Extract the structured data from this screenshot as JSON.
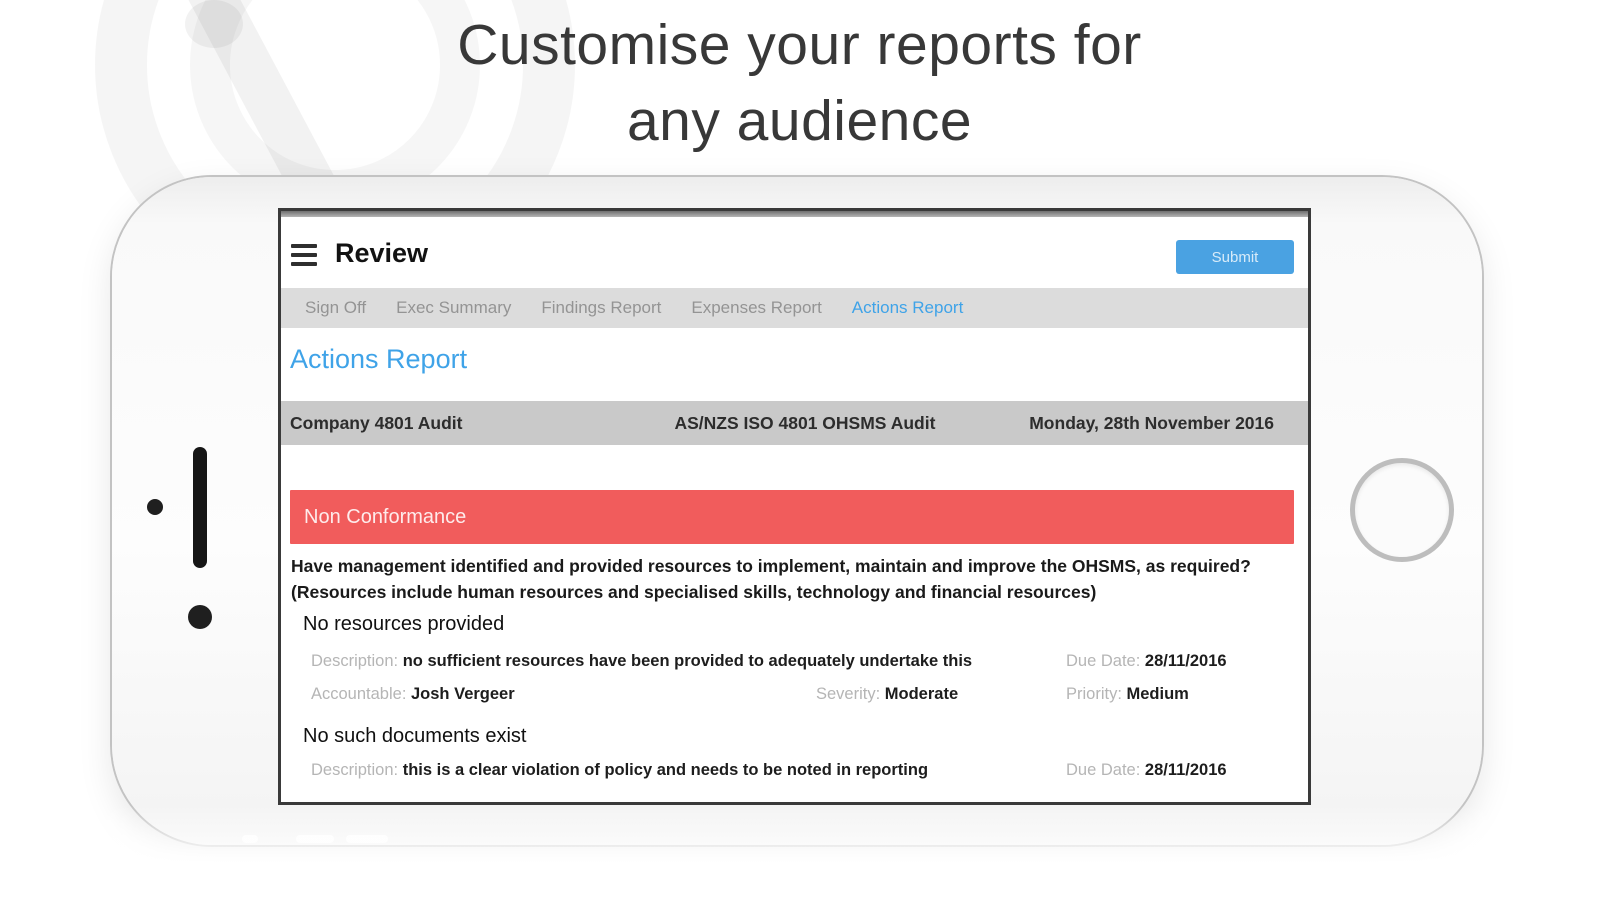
{
  "banner": {
    "headline_line1": "Customise your reports for",
    "headline_line2": "any audience"
  },
  "app": {
    "header": {
      "title": "Review",
      "submit_label": "Submit"
    },
    "tabs": [
      {
        "label": "Sign Off",
        "active": false
      },
      {
        "label": "Exec Summary",
        "active": false
      },
      {
        "label": "Findings Report",
        "active": false
      },
      {
        "label": "Expenses Report",
        "active": false
      },
      {
        "label": "Actions Report",
        "active": true
      }
    ],
    "report_title": "Actions Report",
    "info_bar": {
      "company": "Company 4801 Audit",
      "audit_type": "AS/NZS ISO 4801 OHSMS Audit",
      "date": "Monday, 28th November 2016"
    },
    "section": {
      "banner": "Non Conformance",
      "question": "Have management identified and provided resources to implement, maintain and improve the OHSMS, as required? (Resources include human resources and specialised skills, technology and financial resources)"
    },
    "findings": [
      {
        "title": "No resources provided",
        "description_label": "Description:",
        "description": "no sufficient resources have been provided to adequately undertake this",
        "due_date_label": "Due Date:",
        "due_date": "28/11/2016",
        "accountable_label": "Accountable:",
        "accountable": "Josh Vergeer",
        "severity_label": "Severity:",
        "severity": "Moderate",
        "priority_label": "Priority:",
        "priority": "Medium"
      },
      {
        "title": "No such documents exist",
        "description_label": "Description:",
        "description": "this is a clear violation of policy and needs to be noted in reporting",
        "due_date_label": "Due Date:",
        "due_date": "28/11/2016"
      }
    ]
  },
  "colors": {
    "accent_blue": "#3fa3e8",
    "submit_blue": "#4aa2e2",
    "banner_red": "#f15c5c",
    "info_bar_gray": "#c9c9c9",
    "tab_bar_gray": "#dcdcdc"
  }
}
